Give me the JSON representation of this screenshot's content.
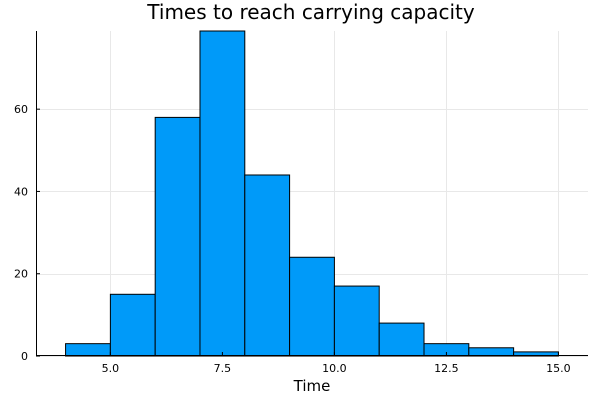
{
  "chart_data": {
    "type": "bar",
    "title": "Times to reach carrying capacity",
    "xlabel": "Time",
    "ylabel": "",
    "bins": [
      {
        "start": 4,
        "end": 5,
        "count": 3
      },
      {
        "start": 5,
        "end": 6,
        "count": 15
      },
      {
        "start": 6,
        "end": 7,
        "count": 58
      },
      {
        "start": 7,
        "end": 8,
        "count": 79
      },
      {
        "start": 8,
        "end": 9,
        "count": 44
      },
      {
        "start": 9,
        "end": 10,
        "count": 24
      },
      {
        "start": 10,
        "end": 11,
        "count": 17
      },
      {
        "start": 11,
        "end": 12,
        "count": 8
      },
      {
        "start": 12,
        "end": 13,
        "count": 3
      },
      {
        "start": 13,
        "end": 14,
        "count": 2
      },
      {
        "start": 14,
        "end": 15,
        "count": 1
      }
    ],
    "xlim": [
      3.34,
      15.66
    ],
    "ylim": [
      0,
      79
    ],
    "xticks": [
      5.0,
      7.5,
      10.0,
      12.5,
      15.0
    ],
    "xtick_labels": [
      "5.0",
      "7.5",
      "10.0",
      "12.5",
      "15.0"
    ],
    "yticks": [
      0,
      20,
      40,
      60
    ],
    "ytick_labels": [
      "0",
      "20",
      "40",
      "60"
    ],
    "grid": true,
    "legend": false,
    "bar_color": "#009af9",
    "edge_color": "#000000"
  }
}
